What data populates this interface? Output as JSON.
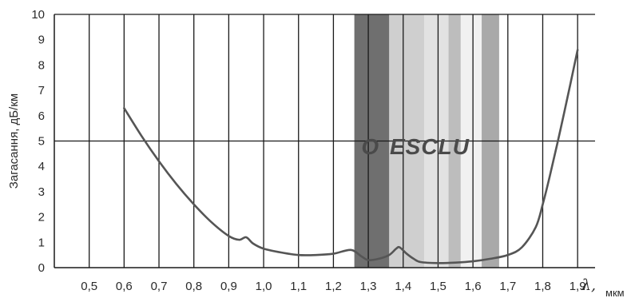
{
  "chart_data": {
    "type": "line",
    "ylabel": "Загасання, дБ/км",
    "xlabel_symbol": "λ,",
    "xlabel_unit": "мкм",
    "xlim": [
      0.4,
      1.95
    ],
    "ylim": [
      0,
      10
    ],
    "x_ticks": [
      {
        "value": 0.5,
        "label": "0,5"
      },
      {
        "value": 0.6,
        "label": "0,6"
      },
      {
        "value": 0.7,
        "label": "0,7"
      },
      {
        "value": 0.8,
        "label": "0,8"
      },
      {
        "value": 0.9,
        "label": "0,9"
      },
      {
        "value": 1.0,
        "label": "1,0"
      },
      {
        "value": 1.1,
        "label": "1,1"
      },
      {
        "value": 1.2,
        "label": "1,2"
      },
      {
        "value": 1.3,
        "label": "1,3"
      },
      {
        "value": 1.4,
        "label": "1,4"
      },
      {
        "value": 1.5,
        "label": "1,5"
      },
      {
        "value": 1.6,
        "label": "1,6"
      },
      {
        "value": 1.7,
        "label": "1,7"
      },
      {
        "value": 1.8,
        "label": "1,8"
      },
      {
        "value": 1.9,
        "label": "1,9"
      }
    ],
    "y_ticks": [
      {
        "value": 0,
        "label": "0"
      },
      {
        "value": 1,
        "label": "1"
      },
      {
        "value": 2,
        "label": "2"
      },
      {
        "value": 3,
        "label": "3"
      },
      {
        "value": 4,
        "label": "4"
      },
      {
        "value": 5,
        "label": "5"
      },
      {
        "value": 6,
        "label": "6"
      },
      {
        "value": 7,
        "label": "7"
      },
      {
        "value": 8,
        "label": "8"
      },
      {
        "value": 9,
        "label": "9"
      },
      {
        "value": 10,
        "label": "10"
      }
    ],
    "grid": "vertical",
    "reference_line": {
      "y": 5
    },
    "bands": [
      {
        "label": "O",
        "x_start": 1.26,
        "x_end": 1.36,
        "color": "#6f6f6f",
        "label_x": 1.305
      },
      {
        "label": "E",
        "x_start": 1.36,
        "x_end": 1.46,
        "color": "#cfcfcf",
        "label_x": 1.383
      },
      {
        "label": "S",
        "x_start": 1.46,
        "x_end": 1.53,
        "color": "#e2e2e2",
        "label_x": 1.428
      },
      {
        "label": "C",
        "x_start": 1.53,
        "x_end": 1.565,
        "color": "#bdbdbd",
        "label_x": 1.475
      },
      {
        "label": "L",
        "x_start": 1.565,
        "x_end": 1.625,
        "color": "#f1f1f1",
        "label_x": 1.52
      },
      {
        "label": "U",
        "x_start": 1.625,
        "x_end": 1.675,
        "color": "#a9a9a9",
        "label_x": 1.565
      }
    ],
    "band_label_y": 4.8,
    "series": [
      {
        "x": [
          0.6,
          0.65,
          0.7,
          0.75,
          0.8,
          0.85,
          0.9,
          0.93,
          0.95,
          0.97,
          1.0,
          1.05,
          1.1,
          1.15,
          1.2,
          1.25,
          1.28,
          1.3,
          1.33,
          1.36,
          1.38,
          1.39,
          1.41,
          1.43,
          1.45,
          1.5,
          1.55,
          1.6,
          1.65,
          1.7,
          1.74,
          1.78,
          1.8,
          1.82,
          1.85,
          1.88,
          1.9
        ],
        "y": [
          6.3,
          5.2,
          4.2,
          3.3,
          2.5,
          1.8,
          1.25,
          1.1,
          1.2,
          0.95,
          0.75,
          0.6,
          0.5,
          0.5,
          0.55,
          0.7,
          0.45,
          0.3,
          0.35,
          0.5,
          0.75,
          0.8,
          0.55,
          0.35,
          0.22,
          0.18,
          0.2,
          0.25,
          0.35,
          0.5,
          0.8,
          1.6,
          2.5,
          3.6,
          5.4,
          7.3,
          8.6
        ]
      }
    ]
  }
}
